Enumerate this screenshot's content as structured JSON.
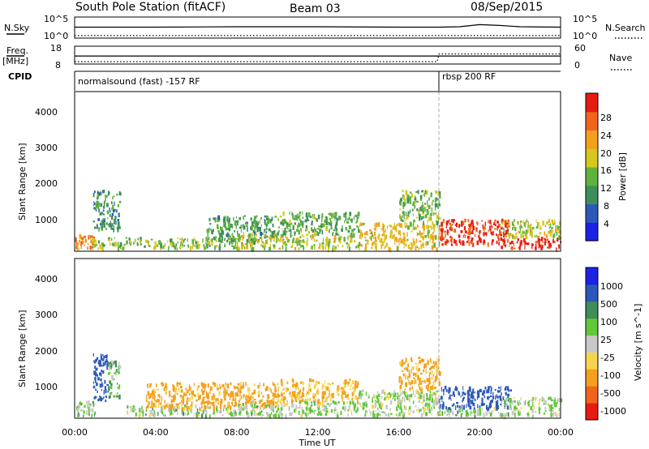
{
  "header": {
    "station": "South Pole Station (fitACF)",
    "beam": "Beam 03",
    "date": "08/Sep/2015"
  },
  "aux": {
    "nsky_label": "N.Sky",
    "nsearch_label": "N.Search",
    "freq_label": "Freq.",
    "freq_unit": "[MHz]",
    "nave_label": "Nave",
    "cpid_label": "CPID",
    "noise_ticks": [
      "10^5",
      "10^0"
    ],
    "freq_ticks": [
      "18",
      "8"
    ],
    "nave_ticks": [
      "60",
      "0"
    ],
    "cpid_segments": [
      {
        "label": "normalsound (fast) -157 RF",
        "start_hour": 0,
        "end_hour": 18
      },
      {
        "label": "rbsp 200 RF",
        "start_hour": 18,
        "end_hour": 24
      }
    ]
  },
  "axes": {
    "xlabel": "Time UT",
    "x_ticks": [
      "00:00",
      "04:00",
      "08:00",
      "12:00",
      "16:00",
      "20:00",
      "00:00"
    ],
    "ylabel": "Slant Range [km]",
    "y_ticks": [
      "1000",
      "2000",
      "3000",
      "4000"
    ]
  },
  "colorbars": {
    "power": {
      "label": "Power [dB]",
      "ticks": [
        "4",
        "8",
        "12",
        "16",
        "20",
        "24",
        "28"
      ]
    },
    "velocity": {
      "label": "Velocity [m s^-1]",
      "ticks": [
        "1000",
        "500",
        "100",
        "25",
        "-25",
        "-100",
        "-500",
        "-1000"
      ]
    }
  },
  "chart_data": [
    {
      "type": "line",
      "panel": "noise",
      "xlabel": "",
      "ylabel": "",
      "xlim": [
        0,
        24
      ],
      "ylim": [
        0,
        5
      ],
      "log_scale": true,
      "series": [
        {
          "name": "N.Sky",
          "style": "solid",
          "x": [
            0,
            4,
            8,
            12,
            16,
            18,
            19,
            20,
            21,
            22,
            24
          ],
          "y": [
            2.6,
            2.6,
            2.7,
            2.7,
            2.6,
            2.6,
            2.7,
            3.2,
            3.0,
            2.7,
            2.6
          ]
        },
        {
          "name": "N.Search",
          "style": "dotted",
          "x": [
            0,
            24
          ],
          "y": [
            0.6,
            0.6
          ]
        }
      ]
    },
    {
      "type": "line",
      "panel": "freq_nave",
      "xlim": [
        0,
        24
      ],
      "series": [
        {
          "name": "Freq.",
          "style": "solid",
          "x": [
            0,
            17.9,
            18,
            24
          ],
          "y": [
            12.5,
            12.5,
            12.5,
            12.5
          ]
        },
        {
          "name": "Nave",
          "style": "dotted",
          "x": [
            0,
            17.9,
            18,
            24
          ],
          "y": [
            8,
            8,
            34,
            34
          ]
        }
      ]
    },
    {
      "type": "heatmap",
      "panel": "power",
      "xlabel": "Time UT",
      "ylabel": "Slant Range [km]",
      "xlim": [
        0,
        24
      ],
      "ylim": [
        200,
        4600
      ],
      "colorbar_range": [
        0,
        30
      ],
      "regions": [
        {
          "t0": 0.0,
          "t1": 1.0,
          "r0": 300,
          "r1": 700,
          "value": 22
        },
        {
          "t0": 0.8,
          "t1": 2.5,
          "r0": 300,
          "r1": 600,
          "value": 14
        },
        {
          "t0": 0.9,
          "t1": 2.2,
          "r0": 800,
          "r1": 1900,
          "value": 10
        },
        {
          "t0": 2.5,
          "t1": 8.0,
          "r0": 300,
          "r1": 600,
          "value": 13
        },
        {
          "t0": 6.5,
          "t1": 10.0,
          "r0": 500,
          "r1": 1200,
          "value": 11
        },
        {
          "t0": 8.0,
          "t1": 14.0,
          "r0": 300,
          "r1": 700,
          "value": 16
        },
        {
          "t0": 10.0,
          "t1": 14.0,
          "r0": 700,
          "r1": 1300,
          "value": 12
        },
        {
          "t0": 14.0,
          "t1": 18.0,
          "r0": 300,
          "r1": 1000,
          "value": 18
        },
        {
          "t0": 16.0,
          "t1": 18.0,
          "r0": 1000,
          "r1": 1900,
          "value": 13
        },
        {
          "t0": 18.0,
          "t1": 21.5,
          "r0": 400,
          "r1": 1100,
          "value": 27
        },
        {
          "t0": 21.0,
          "t1": 24.0,
          "r0": 300,
          "r1": 600,
          "value": 28
        },
        {
          "t0": 21.0,
          "t1": 24.0,
          "r0": 600,
          "r1": 1100,
          "value": 16
        }
      ]
    },
    {
      "type": "heatmap",
      "panel": "velocity",
      "xlabel": "Time UT",
      "ylabel": "Slant Range [km]",
      "xlim": [
        0,
        24
      ],
      "ylim": [
        200,
        4600
      ],
      "colorbar_range": [
        -1000,
        1000
      ],
      "regions": [
        {
          "t0": 0.0,
          "t1": 1.0,
          "r0": 300,
          "r1": 700,
          "value": 60
        },
        {
          "t0": 0.9,
          "t1": 1.6,
          "r0": 700,
          "r1": 2000,
          "value": 700
        },
        {
          "t0": 1.6,
          "t1": 2.2,
          "r0": 800,
          "r1": 1800,
          "value": 80
        },
        {
          "t0": 2.5,
          "t1": 8.0,
          "r0": 300,
          "r1": 600,
          "value": 40
        },
        {
          "t0": 3.5,
          "t1": 10.0,
          "r0": 500,
          "r1": 1200,
          "value": -150
        },
        {
          "t0": 8.0,
          "t1": 14.0,
          "r0": 300,
          "r1": 700,
          "value": 30
        },
        {
          "t0": 10.0,
          "t1": 14.0,
          "r0": 700,
          "r1": 1300,
          "value": -100
        },
        {
          "t0": 14.0,
          "t1": 18.0,
          "r0": 300,
          "r1": 1000,
          "value": 20
        },
        {
          "t0": 16.0,
          "t1": 18.0,
          "r0": 1000,
          "r1": 1900,
          "value": -150
        },
        {
          "t0": 18.0,
          "t1": 21.5,
          "r0": 500,
          "r1": 1100,
          "value": 900
        },
        {
          "t0": 18.0,
          "t1": 21.5,
          "r0": 300,
          "r1": 500,
          "value": 40
        },
        {
          "t0": 21.0,
          "t1": 24.0,
          "r0": 300,
          "r1": 800,
          "value": 20
        }
      ]
    }
  ],
  "colors": {
    "power_scale": [
      "#1c22e6",
      "#2c59b8",
      "#3e8e5a",
      "#5fb33d",
      "#d7c61d",
      "#f4a01d",
      "#f0651b",
      "#e81b12"
    ],
    "velocity_scale": [
      "#e81b12",
      "#f0651b",
      "#f4a01d",
      "#f5d54e",
      "#c8c8c8",
      "#62c73a",
      "#3f8d58",
      "#2c59b8",
      "#1c22e6"
    ],
    "dashed_line": "#aaaaaa"
  }
}
